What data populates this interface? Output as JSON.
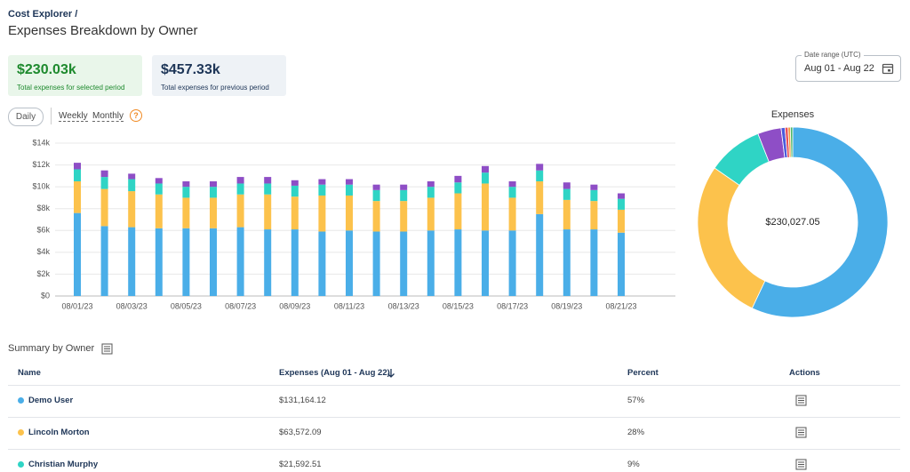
{
  "breadcrumb": {
    "link": "Cost Explorer",
    "separator": "/"
  },
  "header": {
    "title": "Expenses Breakdown by Owner"
  },
  "cards": [
    {
      "value": "$230.03k",
      "caption": "Total expenses for selected period"
    },
    {
      "value": "$457.33k",
      "caption": "Total expenses for previous period"
    }
  ],
  "date_range": {
    "label": "Date range (UTC)",
    "value": "Aug 01 - Aug 22"
  },
  "toggles": {
    "options": [
      "Daily",
      "Weekly",
      "Monthly"
    ],
    "help": "?"
  },
  "chart_data": [
    {
      "type": "bar",
      "stacked": true,
      "grid": true,
      "categories": [
        "08/01/23",
        null,
        "08/03/23",
        null,
        "08/05/23",
        null,
        "08/07/23",
        null,
        "08/09/23",
        null,
        "08/11/23",
        null,
        "08/13/23",
        null,
        "08/15/23",
        null,
        "08/17/23",
        null,
        "08/19/23",
        null,
        "08/21/23"
      ],
      "series": [
        {
          "name": "Demo User",
          "color": "#4aaee8",
          "values": [
            7600,
            6400,
            6300,
            6200,
            6200,
            6200,
            6300,
            6100,
            6100,
            5900,
            6000,
            5900,
            5900,
            6000,
            6100,
            6000,
            6000,
            7500,
            6100,
            6100,
            5800
          ]
        },
        {
          "name": "Lincoln Morton",
          "color": "#fcc24c",
          "values": [
            2900,
            3400,
            3300,
            3100,
            2800,
            2800,
            3000,
            3200,
            3000,
            3300,
            3200,
            2800,
            2800,
            3000,
            3300,
            4300,
            3000,
            3000,
            2700,
            2600,
            2100
          ]
        },
        {
          "name": "Christian Murphy",
          "color": "#2fd4c5",
          "values": [
            1100,
            1100,
            1100,
            1000,
            1000,
            1000,
            1000,
            1000,
            1000,
            1000,
            1000,
            1000,
            1000,
            1000,
            1000,
            1000,
            1000,
            1000,
            1000,
            1000,
            1000
          ]
        },
        {
          "color": "#8e4ec6",
          "values": [
            600,
            600,
            500,
            500,
            500,
            500,
            600,
            600,
            500,
            500,
            500,
            500,
            500,
            500,
            600,
            600,
            500,
            600,
            600,
            500,
            500
          ]
        }
      ],
      "ylim": [
        0,
        14000
      ],
      "yticks": [
        {
          "value": 0,
          "label": "$0"
        },
        {
          "value": 2000,
          "label": "$2k"
        },
        {
          "value": 4000,
          "label": "$4k"
        },
        {
          "value": 6000,
          "label": "$6k"
        },
        {
          "value": 8000,
          "label": "$8k"
        },
        {
          "value": 10000,
          "label": "$10k"
        },
        {
          "value": 12000,
          "label": "$12k"
        },
        {
          "value": 14000,
          "label": "$14k"
        }
      ]
    },
    {
      "type": "pie",
      "donut": true,
      "title": "Expenses",
      "center_label": "$230,027.05",
      "values": [
        131164.12,
        63572.09,
        21592.51,
        9200,
        1500,
        1200,
        900,
        898
      ],
      "colors": [
        "#4aaee8",
        "#fcc24c",
        "#2fd4c5",
        "#8e4ec6",
        "#4b5bdc",
        "#e8505b",
        "#f39c3b",
        "#4cb86a"
      ]
    }
  ],
  "summary": {
    "title": "Summary by Owner"
  },
  "table": {
    "columns": [
      "Name",
      "Expenses (Aug 01 - Aug 22)",
      "Percent",
      "Actions"
    ],
    "rows": [
      [
        "Demo User",
        "$131,164.12",
        "57%"
      ],
      [
        "Lincoln Morton",
        "$63,572.09",
        "28%"
      ],
      [
        "Christian Murphy",
        "$21,592.51",
        "9%"
      ]
    ]
  }
}
